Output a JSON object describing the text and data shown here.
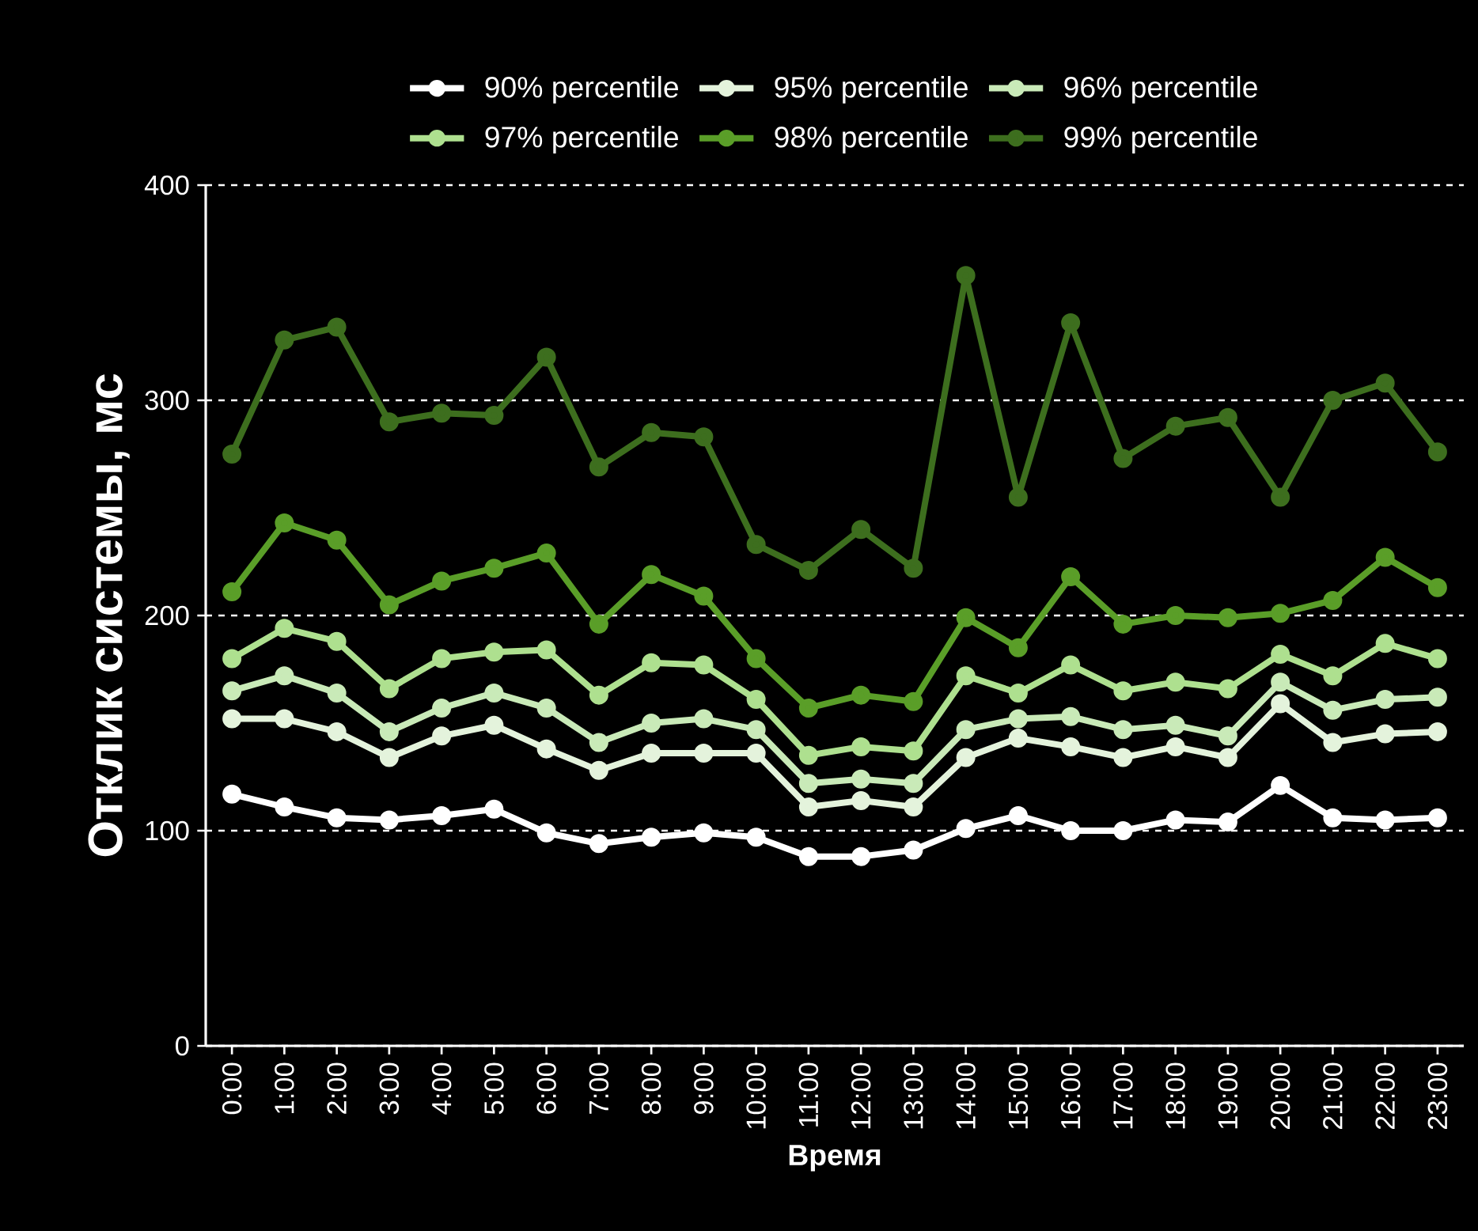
{
  "chart_data": {
    "type": "line",
    "xlabel": "Время",
    "ylabel": "Отклик системы, мс",
    "categories": [
      "0:00",
      "1:00",
      "2:00",
      "3:00",
      "4:00",
      "5:00",
      "6:00",
      "7:00",
      "8:00",
      "9:00",
      "10:00",
      "11:00",
      "12:00",
      "13:00",
      "14:00",
      "15:00",
      "16:00",
      "17:00",
      "18:00",
      "19:00",
      "20:00",
      "21:00",
      "22:00",
      "23:00"
    ],
    "series": [
      {
        "name": "90% percentile",
        "color": "#ffffff",
        "values": [
          117,
          111,
          106,
          105,
          107,
          110,
          99,
          94,
          97,
          99,
          97,
          88,
          88,
          91,
          101,
          107,
          100,
          100,
          105,
          104,
          121,
          106,
          105,
          106
        ]
      },
      {
        "name": "95% percentile",
        "color": "#e4f3dc",
        "values": [
          152,
          152,
          146,
          134,
          144,
          149,
          138,
          128,
          136,
          136,
          136,
          111,
          114,
          111,
          134,
          143,
          139,
          134,
          139,
          134,
          159,
          141,
          145,
          146
        ]
      },
      {
        "name": "96% percentile",
        "color": "#c9eab8",
        "values": [
          165,
          172,
          164,
          146,
          157,
          164,
          157,
          141,
          150,
          152,
          147,
          122,
          124,
          122,
          147,
          152,
          153,
          147,
          149,
          144,
          169,
          156,
          161,
          162
        ]
      },
      {
        "name": "97% percentile",
        "color": "#aee08f",
        "values": [
          180,
          194,
          188,
          166,
          180,
          183,
          184,
          163,
          178,
          177,
          161,
          135,
          139,
          137,
          172,
          164,
          177,
          165,
          169,
          166,
          182,
          172,
          187,
          180
        ]
      },
      {
        "name": "98% percentile",
        "color": "#5a9e28",
        "values": [
          211,
          243,
          235,
          205,
          216,
          222,
          229,
          196,
          219,
          209,
          180,
          157,
          163,
          160,
          199,
          185,
          218,
          196,
          200,
          199,
          201,
          207,
          227,
          213
        ]
      },
      {
        "name": "99% percentile",
        "color": "#3d6e1e",
        "values": [
          275,
          328,
          334,
          290,
          294,
          293,
          320,
          269,
          285,
          283,
          233,
          221,
          240,
          222,
          358,
          255,
          336,
          273,
          288,
          292,
          255,
          300,
          308,
          276
        ]
      }
    ],
    "ylim": [
      0,
      400
    ],
    "yticks": [
      0,
      100,
      200,
      300,
      400
    ],
    "grid": "y",
    "legend": "top",
    "marker": "circle",
    "line_style": "solid"
  }
}
